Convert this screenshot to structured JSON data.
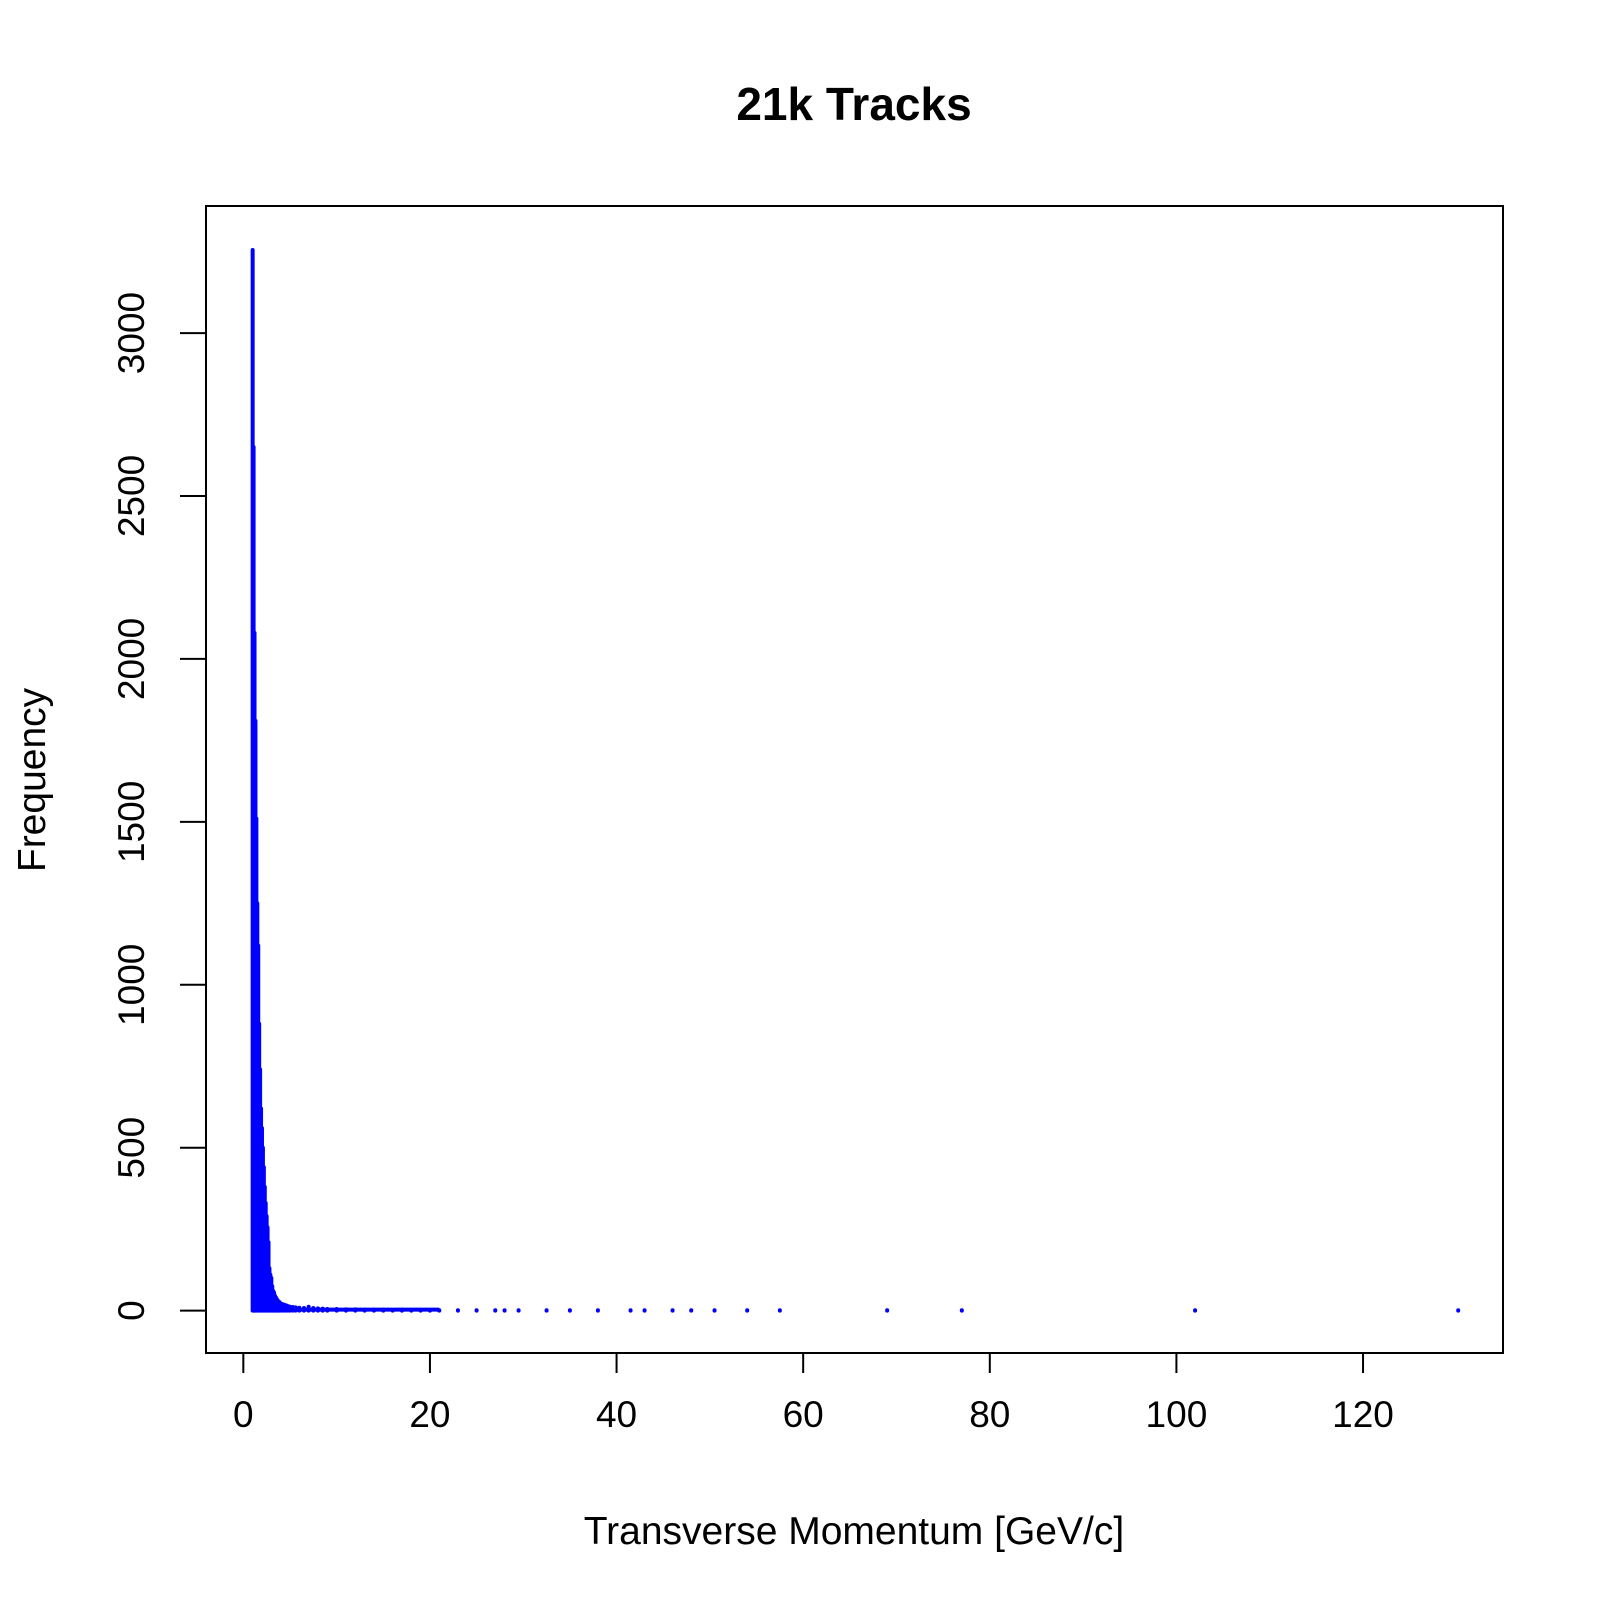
{
  "chart_data": {
    "type": "bar",
    "title": "21k Tracks",
    "xlabel": "Transverse Momentum [GeV/c]",
    "ylabel": "Frequency",
    "xlim": [
      -4,
      135
    ],
    "ylim": [
      -130,
      3390
    ],
    "x_ticks": [
      0,
      20,
      40,
      60,
      80,
      100,
      120
    ],
    "y_ticks": [
      0,
      500,
      1000,
      1500,
      2000,
      2500,
      3000
    ],
    "grid": false,
    "legend": "none",
    "color": "#0000ff",
    "series": [
      {
        "x": [
          1.0,
          1.1,
          1.2,
          1.3,
          1.4,
          1.5,
          1.6,
          1.7,
          1.8,
          1.9,
          2.0,
          2.1,
          2.2,
          2.3,
          2.4,
          2.5,
          2.6,
          2.7,
          2.8,
          2.9,
          3.0,
          3.1,
          3.2,
          3.3,
          3.4,
          3.5,
          3.6,
          3.7,
          3.8,
          3.9,
          4.0,
          4.2,
          4.4,
          4.6,
          4.8,
          5.0,
          5.3,
          5.6,
          6.0,
          6.5,
          7.0,
          7.5,
          8.0,
          8.5,
          9.0,
          10.0,
          11.0,
          12.0,
          13.0,
          14.0,
          15.0,
          16.0,
          17.0,
          18.0,
          19.0,
          20.0,
          21.0,
          23.0,
          25.0,
          27.0,
          28.0,
          29.5,
          32.5,
          35.0,
          38.0,
          41.5,
          43.0,
          46.0,
          48.0,
          50.5,
          54.0,
          57.5,
          69.0,
          77.0,
          102.0,
          130.2
        ],
        "y": [
          3255,
          2650,
          2080,
          1810,
          1510,
          1250,
          1120,
          880,
          740,
          620,
          560,
          500,
          440,
          380,
          330,
          290,
          255,
          210,
          130,
          110,
          100,
          75,
          60,
          55,
          45,
          40,
          35,
          30,
          28,
          25,
          22,
          20,
          18,
          16,
          14,
          12,
          11,
          10,
          9,
          8,
          12,
          8,
          7,
          6,
          5,
          5,
          4,
          4,
          3,
          3,
          3,
          2,
          3,
          2,
          2,
          2,
          1,
          1,
          1,
          1,
          1,
          1,
          1,
          1,
          1,
          1,
          1,
          1,
          1,
          1,
          1,
          1,
          1,
          1,
          1,
          1
        ]
      }
    ]
  }
}
